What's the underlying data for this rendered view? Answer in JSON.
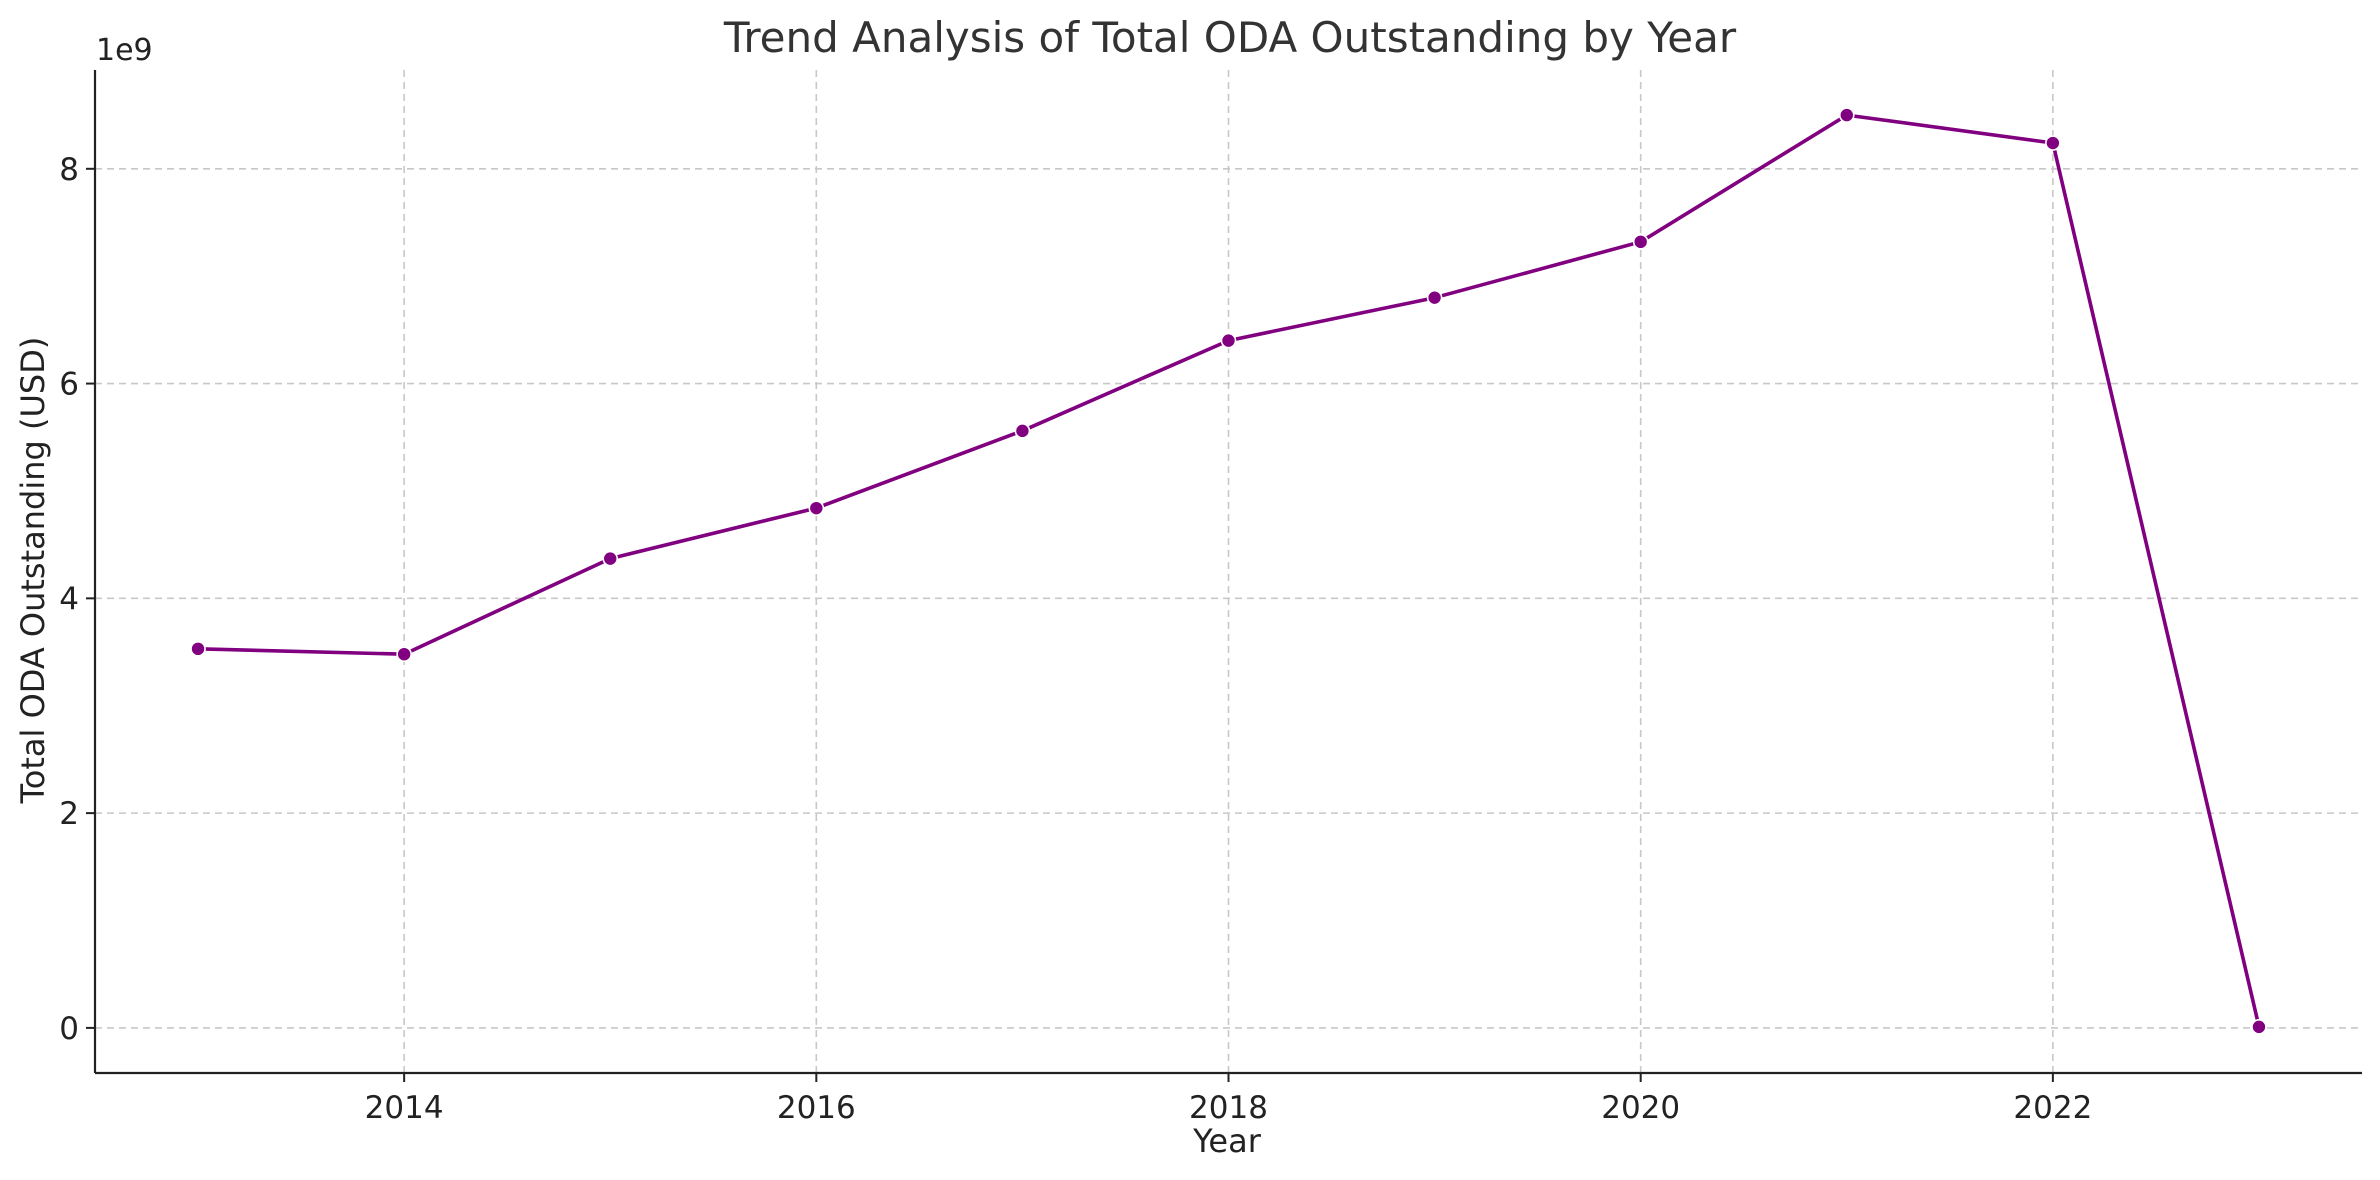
{
  "chart_data": {
    "type": "line",
    "title": "Trend Analysis of Total ODA Outstanding by Year",
    "xlabel": "Year",
    "ylabel": "Total ODA Outstanding (USD)",
    "y_offset_label": "1e9",
    "x": [
      2013,
      2014,
      2015,
      2016,
      2017,
      2018,
      2019,
      2020,
      2021,
      2022,
      2023
    ],
    "series": [
      {
        "values": [
          3530000000,
          3480000000,
          4370000000,
          4840000000,
          5560000000,
          6400000000,
          6800000000,
          7320000000,
          8500000000,
          8240000000,
          10000000
        ],
        "color": "#800080"
      }
    ],
    "xlim": [
      2012.5,
      2023.5
    ],
    "ylim": [
      -420000000,
      8920000000
    ],
    "xticks": [
      2014,
      2016,
      2018,
      2020,
      2022
    ],
    "xtick_labels": [
      "2014",
      "2016",
      "2018",
      "2020",
      "2022"
    ],
    "yticks": [
      0,
      2000000000,
      4000000000,
      6000000000,
      8000000000
    ],
    "ytick_labels": [
      "0",
      "2",
      "4",
      "6",
      "8"
    ],
    "grid": true,
    "marker": "circle"
  }
}
